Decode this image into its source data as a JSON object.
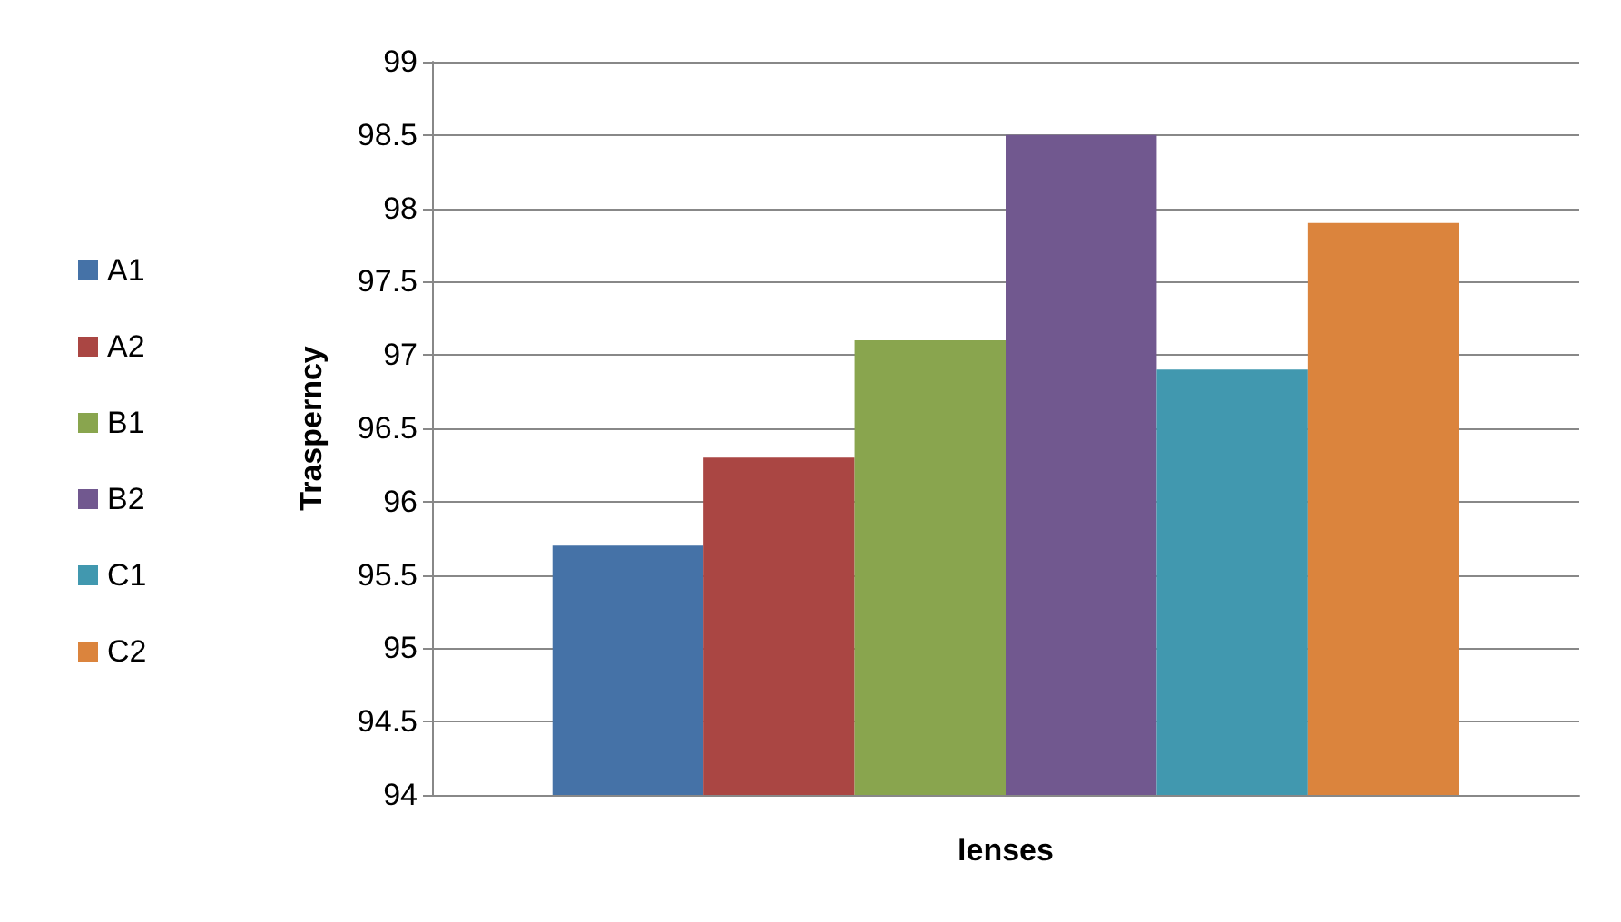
{
  "chart_data": {
    "type": "bar",
    "xlabel": "lenses",
    "ylabel": "Trasperncy",
    "categories": [
      null
    ],
    "series": [
      {
        "name": "A1",
        "color": "#4572a7",
        "values": [
          95.7
        ]
      },
      {
        "name": "A2",
        "color": "#aa4643",
        "values": [
          96.3
        ]
      },
      {
        "name": "B1",
        "color": "#89a54e",
        "values": [
          97.1
        ]
      },
      {
        "name": "B2",
        "color": "#71588f",
        "values": [
          98.5
        ]
      },
      {
        "name": "C1",
        "color": "#4198af",
        "values": [
          96.9
        ]
      },
      {
        "name": "C2",
        "color": "#db843d",
        "values": [
          97.9
        ]
      }
    ],
    "ylim": [
      94,
      99
    ],
    "yticks": [
      94,
      94.5,
      95,
      95.5,
      96,
      96.5,
      97,
      97.5,
      98,
      98.5,
      99
    ],
    "grid": "y",
    "legend": "left"
  }
}
